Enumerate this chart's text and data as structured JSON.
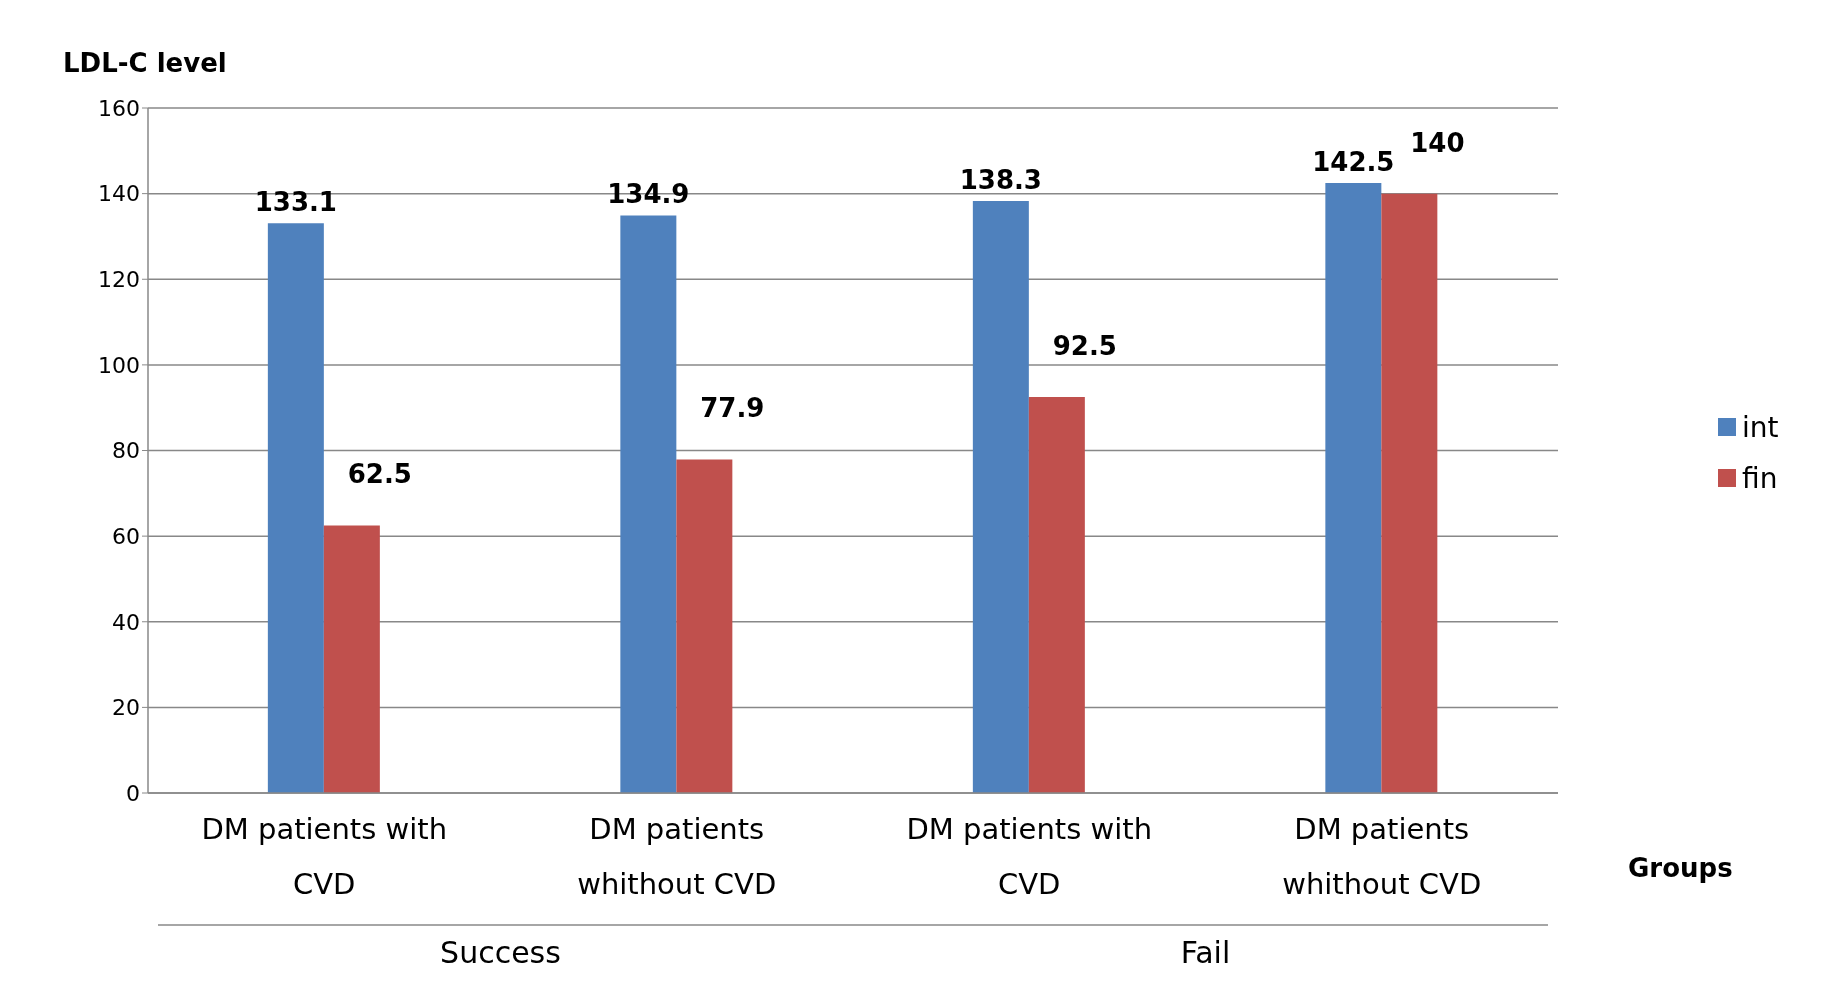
{
  "chart_data": {
    "type": "bar",
    "ylabel": "LDL-C level",
    "xlabel": "Groups",
    "categories": [
      "DM patients with CVD",
      "DM patients whithout CVD",
      "DM patients with CVD",
      "DM patients whithout CVD"
    ],
    "series": [
      {
        "name": "int",
        "color": "#4f81bd",
        "values": [
          133.1,
          134.9,
          138.3,
          142.5
        ]
      },
      {
        "name": "fin",
        "color": "#c0504d",
        "values": [
          62.5,
          77.9,
          92.5,
          140
        ]
      }
    ],
    "annotations": [
      "Success",
      "Fail"
    ],
    "ylim": [
      0,
      160
    ],
    "yticks": [
      0,
      20,
      40,
      60,
      80,
      100,
      120,
      140,
      160
    ],
    "grid": "y",
    "legend": "right",
    "data_labels": true
  }
}
